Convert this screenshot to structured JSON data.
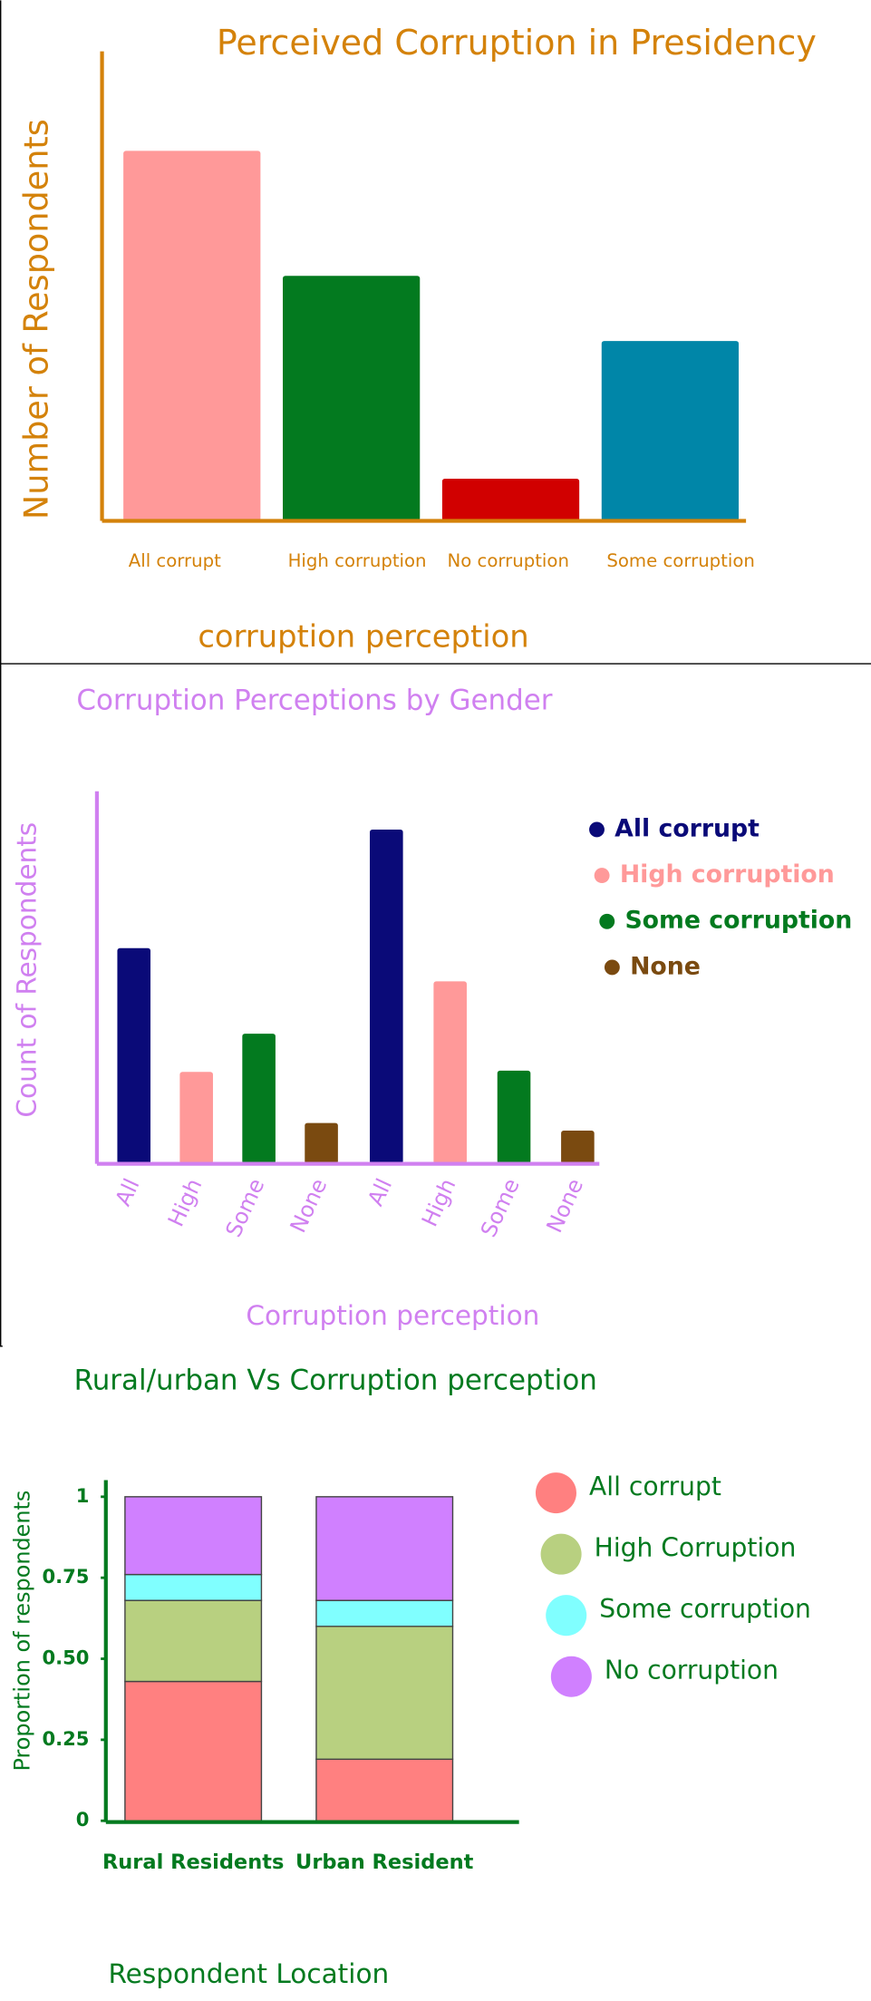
{
  "chart_data": [
    {
      "type": "bar",
      "title": "Perceived Corruption in Presidency",
      "x_label": "corruption perception",
      "y_label": "Number of Respondents",
      "categories": [
        "All corrupt",
        "High corruption",
        "No corruption",
        "Some corruption"
      ],
      "values": [
        290,
        192,
        33,
        141
      ],
      "colors": [
        "#ff9999",
        "#037a1f",
        "#d10000",
        "#0086a8"
      ],
      "ylim": [
        0,
        368
      ]
    },
    {
      "type": "grouped_bar",
      "title": "Corruption Perceptions by Gender",
      "x_label": "Corruption perception",
      "y_label": "Count of Respondents",
      "categories": [
        "All",
        "High",
        "Some",
        "None",
        "All",
        "High",
        "Some",
        "None"
      ],
      "series": [
        {
          "name": "All corrupt",
          "color": "#0a0a78",
          "values": [
            169,
            null,
            null,
            null,
            262,
            null,
            null,
            null
          ]
        },
        {
          "name": "High corruption",
          "color": "#ff9999",
          "values": [
            null,
            72,
            null,
            null,
            null,
            143,
            null,
            null
          ]
        },
        {
          "name": "Some corruption",
          "color": "#037a1f",
          "values": [
            null,
            null,
            102,
            null,
            null,
            null,
            73,
            null
          ]
        },
        {
          "name": "None",
          "color": "#7a4a10",
          "values": [
            null,
            null,
            null,
            32,
            null,
            null,
            null,
            26
          ]
        }
      ],
      "ylim": [
        0,
        292
      ]
    },
    {
      "type": "stacked_bar",
      "title": "Rural/urban Vs Corruption perception",
      "x_label": "Respondent Location",
      "y_label": "Proportion of respondents",
      "categories": [
        "Rural Residents",
        "Urban Resident"
      ],
      "series": [
        {
          "name": "All corrupt",
          "color": "#ff8080",
          "values": [
            0.43,
            0.19
          ]
        },
        {
          "name": "High Corruption",
          "color": "#b8d080",
          "values": [
            0.25,
            0.41
          ]
        },
        {
          "name": "Some corruption",
          "color": "#80ffff",
          "values": [
            0.08,
            0.08
          ]
        },
        {
          "name": "No corruption",
          "color": "#d080ff",
          "values": [
            0.24,
            0.32
          ]
        }
      ],
      "ylim": [
        0,
        1
      ],
      "yticks": [
        0,
        0.25,
        {
          "value": 0.5,
          "label": "0.50"
        },
        0.75,
        1
      ]
    }
  ]
}
